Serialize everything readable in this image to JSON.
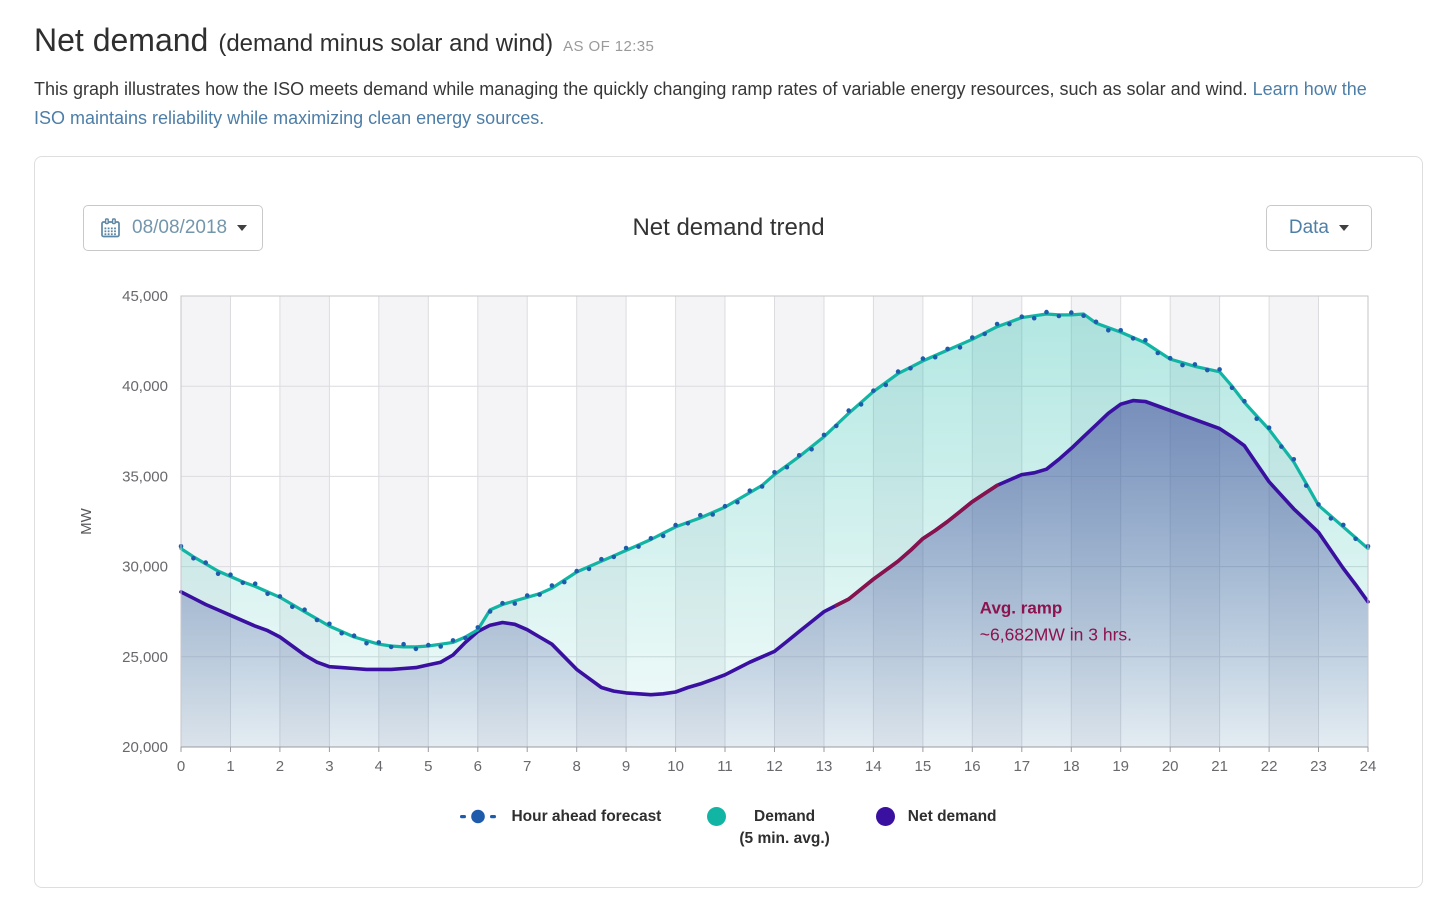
{
  "header": {
    "title": "Net demand",
    "subtitle": "(demand minus solar and wind)",
    "as_of": "AS OF 12:35",
    "description": "This graph illustrates how the ISO meets demand while managing the quickly changing ramp rates of variable energy resources, such as solar and wind.",
    "link_text": "Learn how the ISO maintains reliability while maximizing clean energy sources."
  },
  "toolbar": {
    "date_label": "08/08/2018",
    "chart_title": "Net demand trend",
    "data_button_label": "Data"
  },
  "legend": {
    "forecast": "Hour ahead forecast",
    "demand_line1": "Demand",
    "demand_line2": "(5 min. avg.)",
    "net": "Net demand"
  },
  "chart_data": {
    "type": "line",
    "title": "Net demand trend",
    "xlabel": "",
    "ylabel": "MW",
    "xlim": [
      0,
      24
    ],
    "ylim": [
      20000,
      45000
    ],
    "x_ticks": [
      0,
      1,
      2,
      3,
      4,
      5,
      6,
      7,
      8,
      9,
      10,
      11,
      12,
      13,
      14,
      15,
      16,
      17,
      18,
      19,
      20,
      21,
      22,
      23,
      24
    ],
    "y_ticks": [
      20000,
      25000,
      30000,
      35000,
      40000,
      45000
    ],
    "grid": true,
    "legend_position": "bottom",
    "x_step_hours": 0.25,
    "x_unit": "hour of day",
    "colors": {
      "band": "#f4f4f6",
      "grid": "#dcdce0",
      "axis": "#9b9ba0",
      "border": "#c6c6cb",
      "tick_label": "#68686d",
      "axis_label": "#5a5a5e",
      "net_fill_base": "#4a55a0"
    },
    "series": [
      {
        "name": "Hour ahead forecast",
        "style": "dots",
        "color": "#1e5cab",
        "values": [
          31130,
          30460,
          30220,
          29600,
          29550,
          29100,
          29050,
          28490,
          28350,
          27770,
          27610,
          27040,
          26830,
          26310,
          26170,
          25750,
          25800,
          25550,
          25700,
          25440,
          25650,
          25570,
          25910,
          26040,
          26630,
          27510,
          27970,
          27950,
          28400,
          28450,
          28950,
          29140,
          29750,
          29870,
          30410,
          30540,
          31030,
          31110,
          31570,
          31700,
          32300,
          32400,
          32850,
          32890,
          33350,
          33570,
          34210,
          34440,
          35230,
          35510,
          36170,
          36500,
          37300,
          37800,
          38650,
          38990,
          39750,
          40070,
          40810,
          40990,
          41530,
          41610,
          42070,
          42150,
          42700,
          42900,
          43450,
          43440,
          43850,
          43770,
          44110,
          43890,
          44080,
          43910,
          43570,
          43100,
          43100,
          42650,
          42550,
          41840,
          41550,
          41170,
          41210,
          40890,
          40930,
          39910,
          39170,
          38200,
          37700,
          36650,
          35950,
          34490,
          33450,
          32670,
          32310,
          31540,
          31130
        ]
      },
      {
        "name": "Demand (5 min. avg.)",
        "style": "line+area",
        "color": "#12b5a4",
        "values": [
          31000,
          30550,
          30150,
          29750,
          29450,
          29150,
          28900,
          28600,
          28300,
          27900,
          27500,
          27100,
          26700,
          26400,
          26100,
          25900,
          25700,
          25600,
          25550,
          25550,
          25600,
          25700,
          25800,
          26100,
          26500,
          27600,
          27900,
          28100,
          28300,
          28500,
          28800,
          29250,
          29700,
          30000,
          30300,
          30600,
          30900,
          31200,
          31500,
          31850,
          32200,
          32450,
          32700,
          33000,
          33300,
          33700,
          34100,
          34500,
          35100,
          35600,
          36100,
          36650,
          37200,
          37850,
          38500,
          39100,
          39700,
          40200,
          40700,
          41050,
          41400,
          41700,
          42000,
          42300,
          42600,
          42950,
          43300,
          43550,
          43800,
          43900,
          44000,
          43950,
          43950,
          44000,
          43500,
          43250,
          43000,
          42700,
          42400,
          41950,
          41500,
          41300,
          41100,
          40950,
          40800,
          40000,
          39100,
          38350,
          37600,
          36700,
          35800,
          34600,
          33400,
          32800,
          32200,
          31600,
          31000
        ]
      },
      {
        "name": "Net demand",
        "style": "line+area",
        "color": "#3a10a0",
        "values": [
          28600,
          28250,
          27900,
          27600,
          27300,
          27000,
          26700,
          26450,
          26100,
          25600,
          25100,
          24700,
          24450,
          24400,
          24350,
          24300,
          24300,
          24300,
          24350,
          24400,
          24550,
          24700,
          25100,
          25800,
          26400,
          26750,
          26900,
          26800,
          26500,
          26100,
          25700,
          25000,
          24300,
          23800,
          23300,
          23100,
          23000,
          22950,
          22900,
          22950,
          23050,
          23300,
          23500,
          23750,
          24000,
          24350,
          24700,
          25000,
          25300,
          25850,
          26400,
          26950,
          27500,
          27850,
          28200,
          28750,
          29300,
          29800,
          30300,
          30900,
          31550,
          32000,
          32500,
          33050,
          33600,
          34050,
          34500,
          34800,
          35100,
          35200,
          35400,
          35950,
          36550,
          37200,
          37850,
          38500,
          39000,
          39200,
          39150,
          38900,
          38650,
          38400,
          38150,
          37900,
          37650,
          37200,
          36700,
          35700,
          34700,
          33950,
          33200,
          32550,
          31900,
          30900,
          29900,
          29000,
          28050
        ],
        "ramp_segment": {
          "start_hour": 13.25,
          "end_hour": 16.5,
          "color": "#87124c"
        }
      }
    ],
    "annotation": {
      "line1": "Avg. ramp",
      "line2": "~6,682MW in 3 hrs.",
      "x_hour": 16.15,
      "y_mw_line1": 27400,
      "y_mw_line2": 25900,
      "color": "#8c134f"
    }
  }
}
